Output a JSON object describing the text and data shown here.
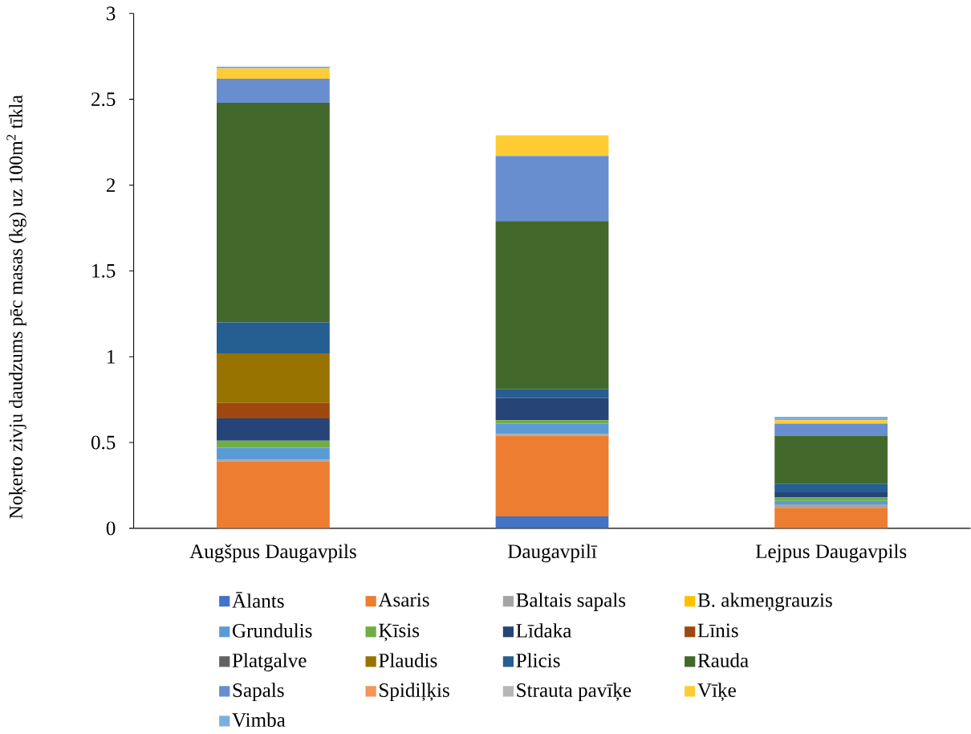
{
  "chart_data": {
    "type": "bar",
    "stacked": true,
    "ylabel": "Noķerto zivju daudzums pēc masas (kg) uz 100m$^{2}$ tīkla",
    "categories": [
      "Augšpus Daugavpils",
      "Daugavpilī",
      "Lejpus Daugavpils"
    ],
    "ylim": [
      0,
      3
    ],
    "yticks": [
      0,
      0.5,
      1,
      1.5,
      2,
      2.5,
      3
    ],
    "legend": "bottom",
    "series": [
      {
        "name": "Ālants",
        "color": "#4472c4",
        "values": [
          0,
          0.07,
          0
        ]
      },
      {
        "name": "Asaris",
        "color": "#ed7d31",
        "values": [
          0.39,
          0.47,
          0.12
        ]
      },
      {
        "name": "Baltais sapals",
        "color": "#a5a5a5",
        "values": [
          0.01,
          0.01,
          0.02
        ]
      },
      {
        "name": "B. akmeņgrauzis",
        "color": "#ffc000",
        "values": [
          0,
          0,
          0
        ]
      },
      {
        "name": "Grundulis",
        "color": "#5b9bd5",
        "values": [
          0.07,
          0.06,
          0.02
        ]
      },
      {
        "name": "Ķīsis",
        "color": "#70ad47",
        "values": [
          0.04,
          0.02,
          0.02
        ]
      },
      {
        "name": "Līdaka",
        "color": "#264478",
        "values": [
          0.13,
          0.13,
          0.03
        ]
      },
      {
        "name": "Līnis",
        "color": "#9e480e",
        "values": [
          0.09,
          0,
          0
        ]
      },
      {
        "name": "Platgalve",
        "color": "#636363",
        "values": [
          0,
          0,
          0
        ]
      },
      {
        "name": "Plaudis",
        "color": "#997300",
        "values": [
          0.29,
          0,
          0
        ]
      },
      {
        "name": "Plicis",
        "color": "#255e91",
        "values": [
          0.18,
          0.05,
          0.05
        ]
      },
      {
        "name": "Rauda",
        "color": "#43682b",
        "values": [
          1.28,
          0.98,
          0.28
        ]
      },
      {
        "name": "Sapals",
        "color": "#698ed0",
        "values": [
          0.14,
          0.38,
          0.07
        ]
      },
      {
        "name": "Spidiļķis",
        "color": "#f1975a",
        "values": [
          0,
          0,
          0
        ]
      },
      {
        "name": "Strauta pavīķe",
        "color": "#b7b7b7",
        "values": [
          0,
          0,
          0
        ]
      },
      {
        "name": "Vīķe",
        "color": "#ffcd33",
        "values": [
          0.06,
          0.12,
          0.02
        ]
      },
      {
        "name": "Vimba",
        "color": "#7cafdd",
        "values": [
          0.01,
          0,
          0.02
        ]
      }
    ]
  }
}
